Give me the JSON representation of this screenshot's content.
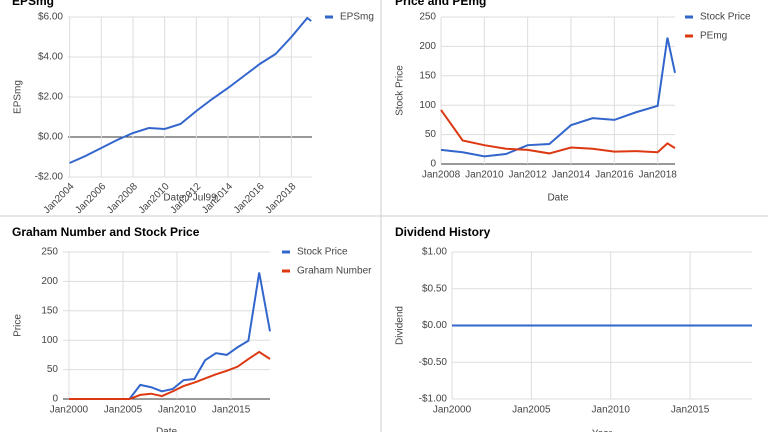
{
  "chart_data": [
    {
      "type": "line",
      "title": "EPSmg",
      "x_label": "Date / Jul99",
      "y_label": "EPSmg",
      "x": [
        2004,
        2005,
        2006,
        2007,
        2008,
        2009,
        2010,
        2011,
        2012,
        2013,
        2014,
        2015,
        2016,
        2017,
        2018,
        2019,
        2019.25
      ],
      "series": [
        {
          "name": "EPSmg",
          "color": "#3366cc",
          "values": [
            -1.3,
            -0.95,
            -0.55,
            -0.15,
            0.2,
            0.45,
            0.4,
            0.65,
            1.3,
            1.9,
            2.45,
            3.05,
            3.65,
            4.15,
            5.0,
            5.95,
            5.8
          ]
        }
      ],
      "xlim": [
        2003.9,
        2019.3
      ],
      "ylim": [
        -2,
        6
      ],
      "xticks": [
        {
          "value": 2004,
          "label": "Jan2004"
        },
        {
          "value": 2006,
          "label": "Jan2006"
        },
        {
          "value": 2008,
          "label": "Jan2008"
        },
        {
          "value": 2010,
          "label": "Jan2010"
        },
        {
          "value": 2012,
          "label": "Jan2012"
        },
        {
          "value": 2014,
          "label": "Jan2014"
        },
        {
          "value": 2016,
          "label": "Jan2016"
        },
        {
          "value": 2018,
          "label": "Jan2018"
        }
      ],
      "yticks": [
        {
          "value": -2,
          "label": "-$2.00"
        },
        {
          "value": 0,
          "label": "$0.00"
        },
        {
          "value": 2,
          "label": "$2.00"
        },
        {
          "value": 4,
          "label": "$4.00"
        },
        {
          "value": 6,
          "label": "$6.00"
        }
      ],
      "grid": true,
      "legend": "right"
    },
    {
      "type": "line",
      "title": "Price and PEmg",
      "x_label": "Date",
      "y_label": "Stock Price",
      "x": [
        2008,
        2009,
        2010,
        2011,
        2012,
        2013,
        2014,
        2015,
        2016,
        2017,
        2018,
        2018.45,
        2018.8
      ],
      "series": [
        {
          "name": "Stock Price",
          "color": "#3366cc",
          "values": [
            24,
            20,
            13,
            17,
            32,
            34,
            66,
            78,
            75,
            88,
            99,
            215,
            155
          ]
        },
        {
          "name": "PEmg",
          "color": "#dc3912",
          "values": [
            92,
            40,
            32,
            26,
            24,
            18,
            28,
            26,
            21,
            22,
            20,
            35,
            27
          ]
        }
      ],
      "xlim": [
        2008,
        2018.8
      ],
      "ylim": [
        0,
        250
      ],
      "xticks": [
        {
          "value": 2008,
          "label": "Jan2008"
        },
        {
          "value": 2010,
          "label": "Jan2010"
        },
        {
          "value": 2012,
          "label": "Jan2012"
        },
        {
          "value": 2014,
          "label": "Jan2014"
        },
        {
          "value": 2016,
          "label": "Jan2016"
        },
        {
          "value": 2018,
          "label": "Jan2018"
        }
      ],
      "yticks": [
        0,
        50,
        100,
        150,
        200,
        250
      ],
      "grid": true,
      "legend": "right"
    },
    {
      "type": "line",
      "title": "Graham Number and Stock Price",
      "x_label": "Date",
      "y_label": "Price",
      "x": [
        2000,
        2005.6,
        2006.6,
        2007.6,
        2008.6,
        2009.6,
        2010.6,
        2011.6,
        2012.6,
        2013.6,
        2014.6,
        2015.6,
        2016.6,
        2017.6,
        2018.6
      ],
      "series": [
        {
          "name": "Stock Price",
          "color": "#3366cc",
          "values": [
            0,
            0,
            24,
            20,
            13,
            17,
            32,
            34,
            66,
            78,
            75,
            88,
            99,
            215,
            115
          ]
        },
        {
          "name": "Graham Number",
          "color": "#dc3912",
          "values": [
            0,
            0,
            7,
            9,
            5,
            13,
            22,
            28,
            35,
            42,
            48,
            55,
            68,
            80,
            68
          ]
        }
      ],
      "xlim": [
        1999.45,
        2018.6
      ],
      "ylim": [
        0,
        250
      ],
      "xticks": [
        {
          "value": 2000,
          "label": "Jan2000"
        },
        {
          "value": 2005,
          "label": "Jan2005"
        },
        {
          "value": 2010,
          "label": "Jan2010"
        },
        {
          "value": 2015,
          "label": "Jan2015"
        }
      ],
      "yticks": [
        0,
        50,
        100,
        150,
        200,
        250
      ],
      "grid": true,
      "legend": "right"
    },
    {
      "type": "line",
      "title": "Dividend History",
      "x_label": "Year",
      "y_label": "Dividend",
      "x": [
        2000,
        2005,
        2010,
        2015,
        2018.9
      ],
      "series": [
        {
          "color": "#3366cc",
          "values": [
            0,
            0,
            0,
            0,
            0
          ]
        }
      ],
      "xlim": [
        2000,
        2018.9
      ],
      "ylim": [
        -1,
        1
      ],
      "xticks": [
        {
          "value": 2000,
          "label": "Jan2000"
        },
        {
          "value": 2005,
          "label": "Jan2005"
        },
        {
          "value": 2010,
          "label": "Jan2010"
        },
        {
          "value": 2015,
          "label": "Jan2015"
        }
      ],
      "yticks": [
        {
          "value": -1,
          "label": "-$1.00"
        },
        {
          "value": -0.5,
          "label": "-$0.50"
        },
        {
          "value": 0,
          "label": "$0.00"
        },
        {
          "value": 0.5,
          "label": "$0.50"
        },
        {
          "value": 1,
          "label": "$1.00"
        }
      ],
      "grid": true
    }
  ]
}
